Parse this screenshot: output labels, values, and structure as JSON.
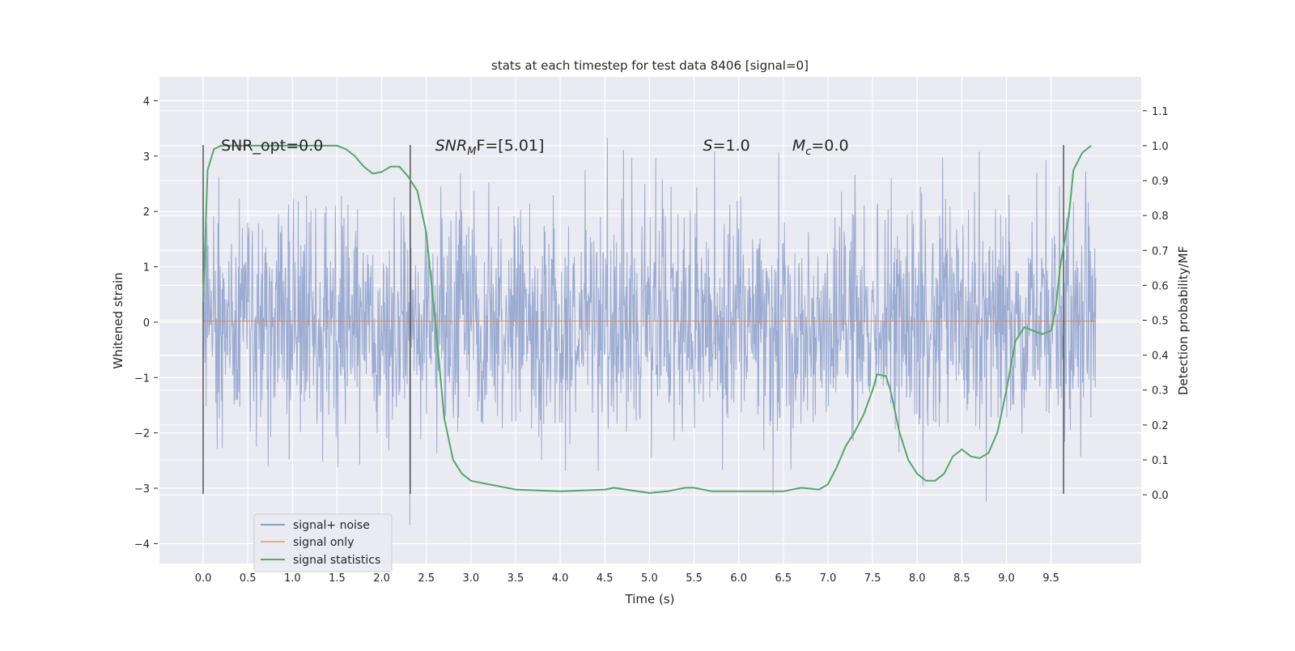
{
  "chart_data": {
    "type": "line",
    "title": "stats at each timestep for test data 8406 [signal=0]",
    "xlabel": "Time (s)",
    "ylabel": "Whitened strain",
    "ylabel_right": "Detection probability/MF",
    "xlim": [
      -0.49,
      10.51
    ],
    "ylim": [
      -4.36,
      4.43
    ],
    "ylim_right": [
      -0.197,
      1.197
    ],
    "grid": true,
    "xticks": [
      "0.0",
      "0.5",
      "1.0",
      "1.5",
      "2.0",
      "2.5",
      "3.0",
      "3.5",
      "4.0",
      "4.5",
      "5.0",
      "5.5",
      "6.0",
      "6.5",
      "7.0",
      "7.5",
      "8.0",
      "8.5",
      "9.0",
      "9.5"
    ],
    "yticks": [
      "−4",
      "−3",
      "−2",
      "−1",
      "0",
      "1",
      "2",
      "3",
      "4"
    ],
    "yticks_right": [
      "0.0",
      "0.1",
      "0.2",
      "0.3",
      "0.4",
      "0.5",
      "0.6",
      "0.7",
      "0.8",
      "0.9",
      "1.0",
      "1.1"
    ],
    "legend": {
      "placement": "lower-left",
      "entries": [
        "signal+ noise",
        "signal only",
        "signal statistics"
      ]
    },
    "colors": {
      "noise": "#8da0cb",
      "signal": "#dd8452",
      "stats": "#55a868",
      "vline": "#555555",
      "bg": "#eaeaf2"
    },
    "series": [
      {
        "name": "signal+ noise",
        "axis": "left",
        "x_range": [
          0,
          10
        ],
        "n_samples": 2048,
        "std": 0.75,
        "note_generated": true
      },
      {
        "name": "signal only",
        "axis": "left",
        "x": [
          0,
          10
        ],
        "y": [
          0.02,
          0.02
        ]
      },
      {
        "name": "signal statistics",
        "axis": "right",
        "x": [
          0.0,
          0.05,
          0.12,
          0.2,
          1.5,
          1.6,
          1.7,
          1.8,
          1.9,
          2.0,
          2.1,
          2.2,
          2.3,
          2.4,
          2.5,
          2.6,
          2.7,
          2.8,
          2.9,
          3.0,
          3.2,
          3.5,
          4.0,
          4.5,
          4.6,
          5.0,
          5.2,
          5.4,
          5.5,
          5.7,
          6.0,
          6.5,
          6.7,
          6.9,
          7.0,
          7.1,
          7.2,
          7.3,
          7.4,
          7.5,
          7.55,
          7.65,
          7.7,
          7.8,
          7.9,
          8.0,
          8.1,
          8.2,
          8.3,
          8.4,
          8.5,
          8.6,
          8.7,
          8.8,
          8.9,
          9.0,
          9.1,
          9.2,
          9.3,
          9.4,
          9.5,
          9.55,
          9.6,
          9.7,
          9.75,
          9.85,
          9.95
        ],
        "y": [
          0.55,
          0.93,
          0.99,
          1.0,
          1.0,
          0.99,
          0.97,
          0.94,
          0.92,
          0.925,
          0.94,
          0.94,
          0.91,
          0.87,
          0.75,
          0.5,
          0.22,
          0.1,
          0.06,
          0.04,
          0.03,
          0.015,
          0.01,
          0.015,
          0.02,
          0.005,
          0.01,
          0.02,
          0.02,
          0.01,
          0.01,
          0.01,
          0.02,
          0.015,
          0.03,
          0.08,
          0.14,
          0.18,
          0.23,
          0.3,
          0.345,
          0.34,
          0.3,
          0.18,
          0.1,
          0.06,
          0.04,
          0.04,
          0.06,
          0.11,
          0.13,
          0.11,
          0.105,
          0.12,
          0.18,
          0.3,
          0.44,
          0.48,
          0.47,
          0.46,
          0.47,
          0.53,
          0.65,
          0.8,
          0.93,
          0.98,
          1.0
        ]
      }
    ],
    "vlines": [
      {
        "x": 0.0,
        "y": [
          -3.1,
          3.2
        ]
      },
      {
        "x": 2.32,
        "y": [
          -3.1,
          3.2
        ]
      },
      {
        "x": 9.64,
        "y": [
          -3.1,
          3.2
        ]
      }
    ],
    "annotations": [
      {
        "text": "SNR_opt=0.0",
        "x": 0.2,
        "y": 3.2,
        "italic": false
      },
      {
        "text": "SNR",
        "sub": "M",
        "tail": "F=[5.01]",
        "x": 2.6,
        "y": 3.2,
        "italic": true
      },
      {
        "text": "S",
        "sub": "",
        "tail": "=1.0",
        "x": 5.6,
        "y": 3.2,
        "italic": true
      },
      {
        "text": "M",
        "sub": "c",
        "tail": "=0.0",
        "x": 6.6,
        "y": 3.2,
        "italic": true
      }
    ]
  }
}
